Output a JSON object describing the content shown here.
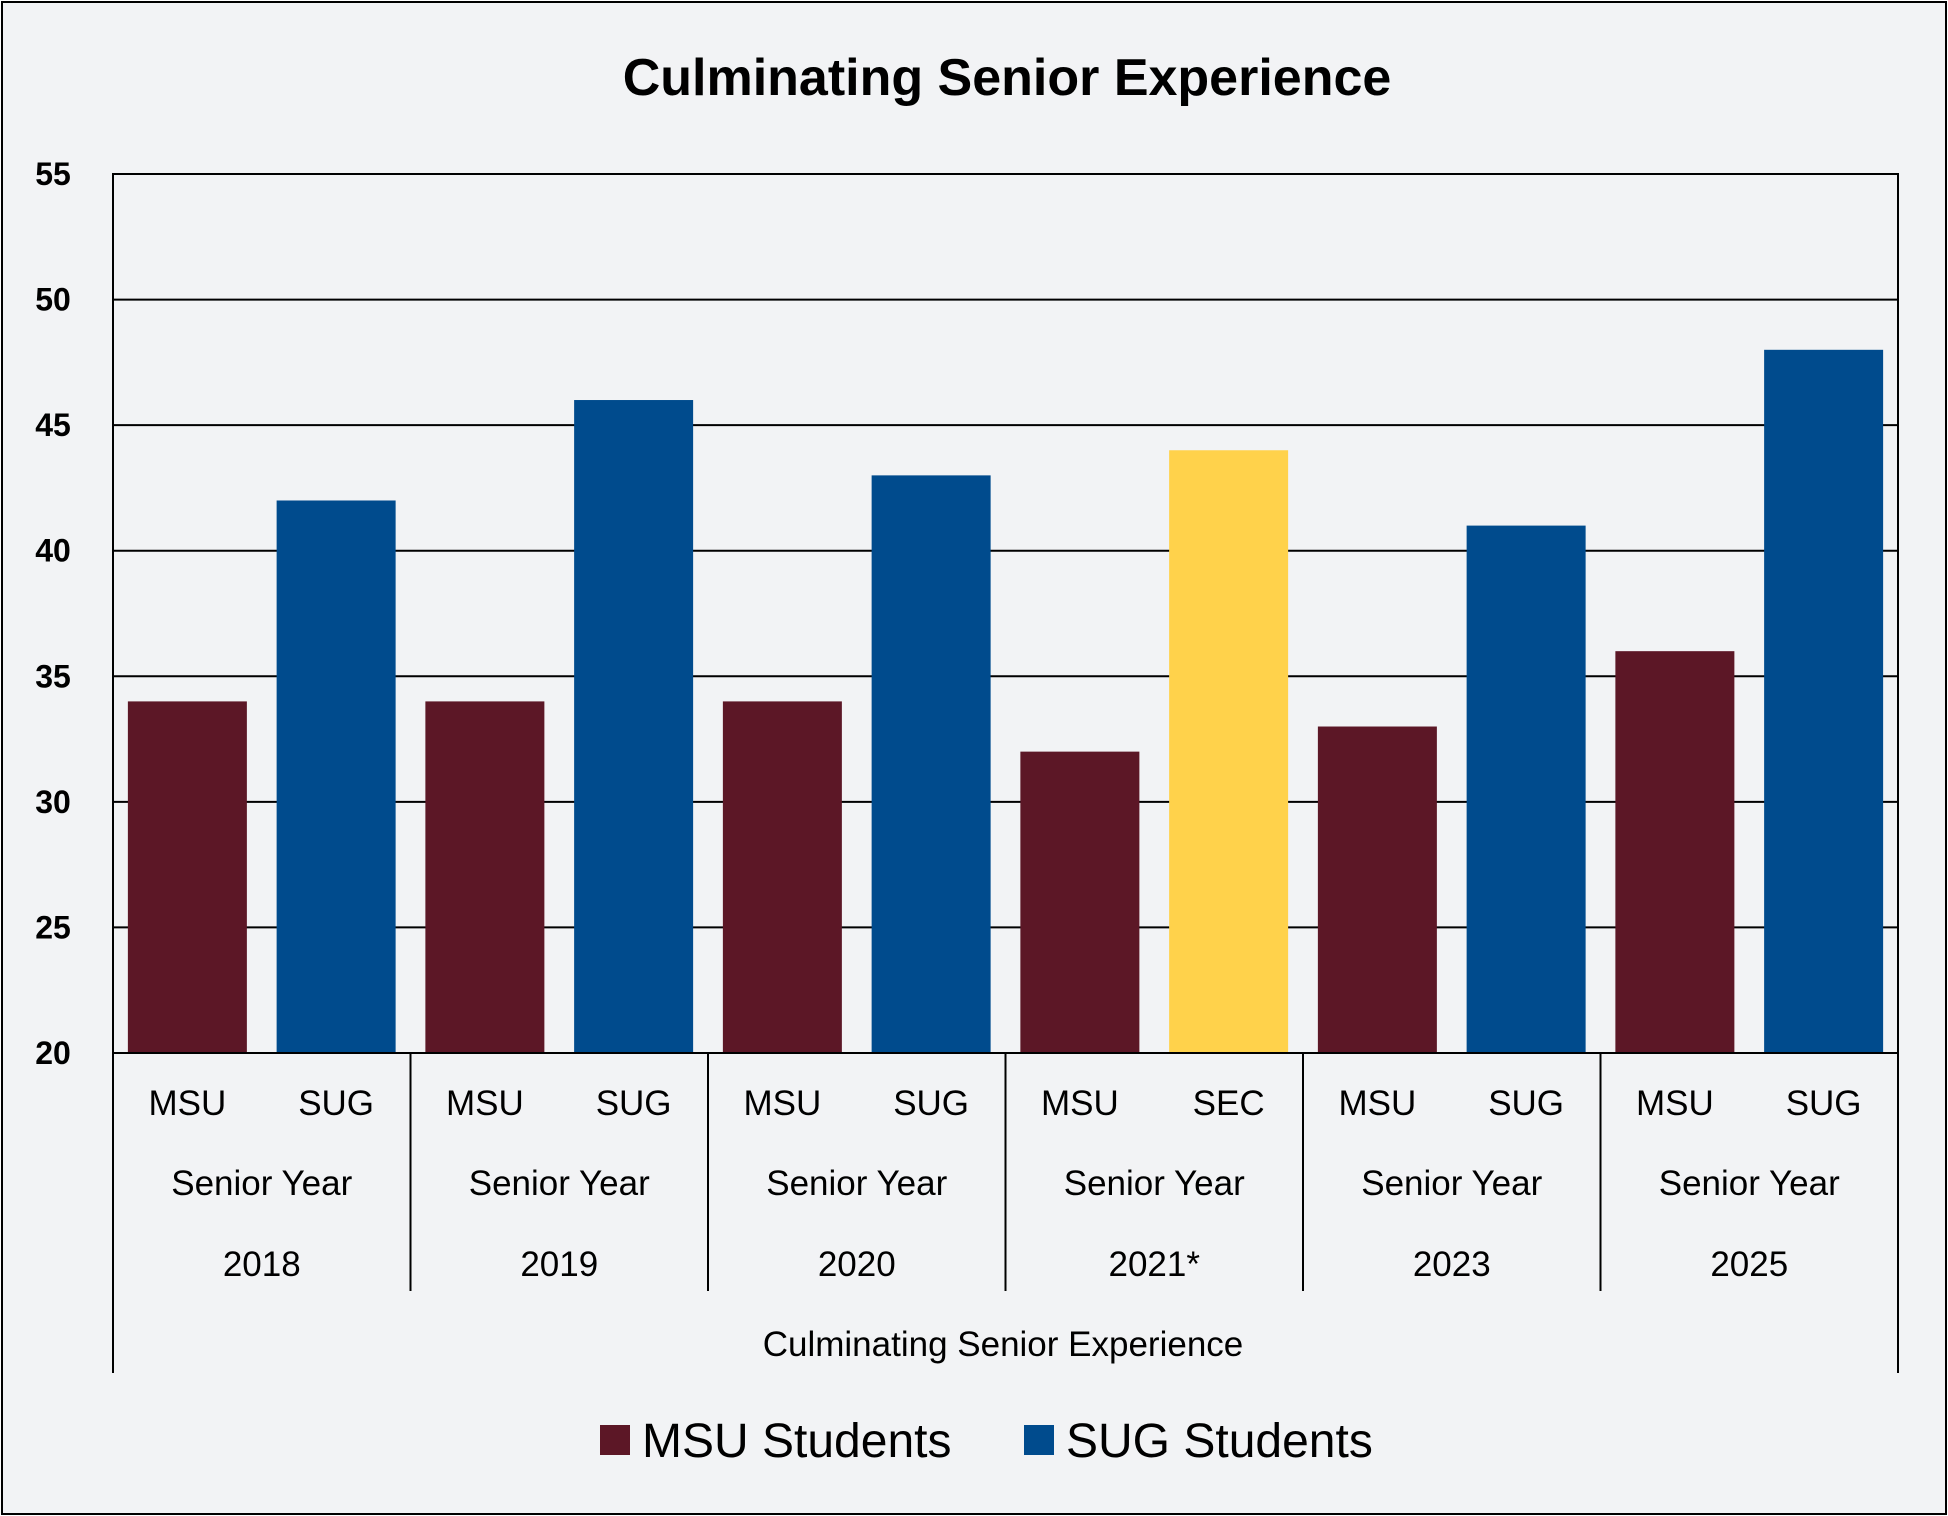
{
  "chart_data": {
    "type": "bar",
    "title": "Culminating Senior Experience",
    "xlabel": "Culminating Senior Experience",
    "ylabel": "",
    "ylim": [
      20,
      55
    ],
    "yticks": [
      20,
      25,
      30,
      35,
      40,
      45,
      50,
      55
    ],
    "grid": true,
    "legend_position": "bottom",
    "groups": [
      {
        "year": "2018",
        "level": "Senior Year",
        "bars": [
          {
            "label": "MSU",
            "value": 34,
            "kind": "msu"
          },
          {
            "label": "SUG",
            "value": 42,
            "kind": "sug"
          }
        ]
      },
      {
        "year": "2019",
        "level": "Senior Year",
        "bars": [
          {
            "label": "MSU",
            "value": 34,
            "kind": "msu"
          },
          {
            "label": "SUG",
            "value": 46,
            "kind": "sug"
          }
        ]
      },
      {
        "year": "2020",
        "level": "Senior Year",
        "bars": [
          {
            "label": "MSU",
            "value": 34,
            "kind": "msu"
          },
          {
            "label": "SUG",
            "value": 43,
            "kind": "sug"
          }
        ]
      },
      {
        "year": "2021*",
        "level": "Senior Year",
        "bars": [
          {
            "label": "MSU",
            "value": 32,
            "kind": "msu"
          },
          {
            "label": "SEC",
            "value": 44,
            "kind": "sec"
          }
        ]
      },
      {
        "year": "2023",
        "level": "Senior Year",
        "bars": [
          {
            "label": "MSU",
            "value": 33,
            "kind": "msu"
          },
          {
            "label": "SUG",
            "value": 41,
            "kind": "sug"
          }
        ]
      },
      {
        "year": "2025",
        "level": "Senior Year",
        "bars": [
          {
            "label": "MSU",
            "value": 36,
            "kind": "msu"
          },
          {
            "label": "SUG",
            "value": 48,
            "kind": "sug"
          }
        ]
      }
    ],
    "legend": [
      {
        "label": "MSU Students",
        "kind": "msu"
      },
      {
        "label": "SUG Students",
        "kind": "sug"
      }
    ],
    "colors": {
      "msu": "#5c1726",
      "sug": "#004b8d",
      "sec": "#ffd24b"
    }
  }
}
